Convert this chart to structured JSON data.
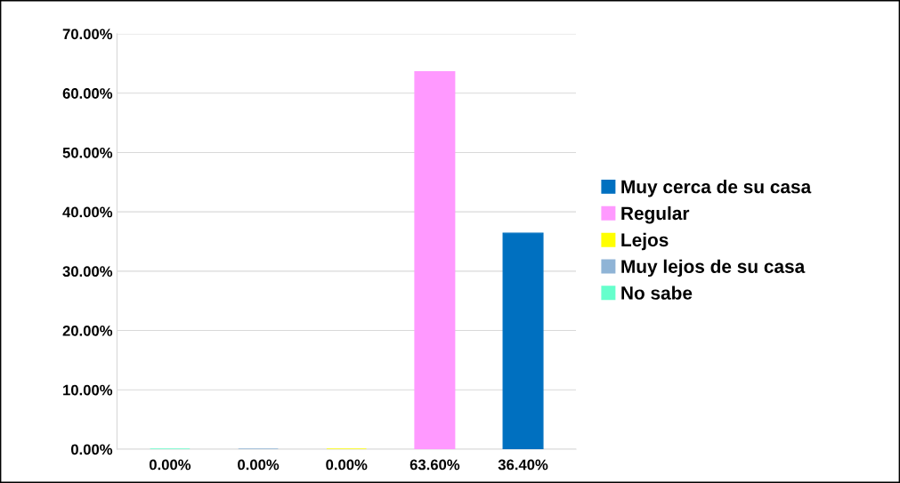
{
  "chart_data": {
    "type": "bar",
    "categories": [
      null,
      null,
      null,
      null,
      null
    ],
    "series": [
      {
        "name": "Muy cerca de su casa",
        "color": "#0070c0",
        "values": [
          null,
          null,
          null,
          null,
          36.4
        ],
        "value_labels": [
          null,
          null,
          null,
          null,
          "36.40%"
        ]
      },
      {
        "name": "Regular",
        "color": "#ff99ff",
        "values": [
          null,
          null,
          null,
          63.6,
          null
        ],
        "value_labels": [
          null,
          null,
          null,
          "63.60%",
          null
        ]
      },
      {
        "name": "Lejos",
        "color": "#ffff00",
        "values": [
          null,
          null,
          0,
          null,
          null
        ],
        "value_labels": [
          null,
          null,
          "0.00%",
          null,
          null
        ]
      },
      {
        "name": "Muy lejos de su casa",
        "color": "#8fb4d6",
        "values": [
          null,
          0,
          null,
          null,
          null
        ],
        "value_labels": [
          null,
          "0.00%",
          null,
          null,
          null
        ]
      },
      {
        "name": "No sabe",
        "color": "#66ffcc",
        "values": [
          0,
          null,
          null,
          null,
          null
        ],
        "value_labels": [
          "0.00%",
          null,
          null,
          null,
          null
        ]
      }
    ],
    "ylim": [
      0,
      70
    ],
    "yticks": [
      {
        "value": 0,
        "label": "0.00%"
      },
      {
        "value": 10,
        "label": "10.00%"
      },
      {
        "value": 20,
        "label": "20.00%"
      },
      {
        "value": 30,
        "label": "30.00%"
      },
      {
        "value": 40,
        "label": "40.00%"
      },
      {
        "value": 50,
        "label": "50.00%"
      },
      {
        "value": 60,
        "label": "60.00%"
      },
      {
        "value": 70,
        "label": "70.00%"
      }
    ],
    "grid": "y",
    "legend": "right"
  }
}
